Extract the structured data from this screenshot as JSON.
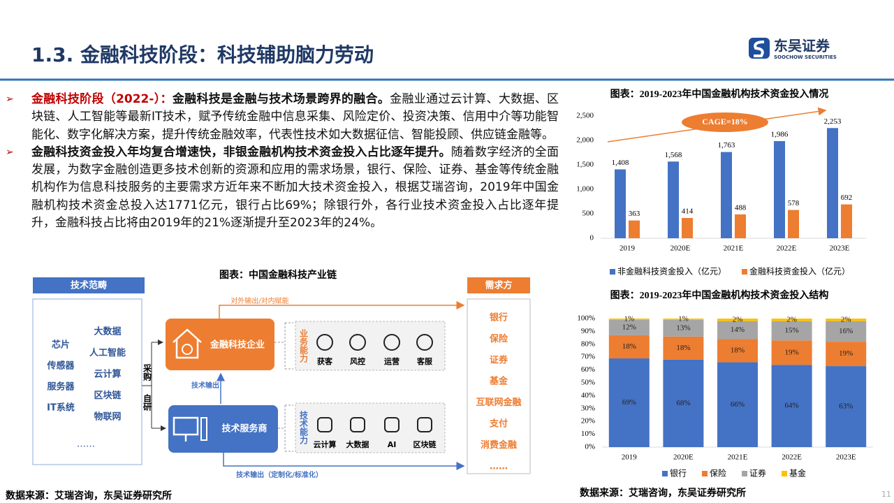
{
  "header": {
    "title": "1.3. 金融科技阶段：科技辅助脑力劳动"
  },
  "logo": {
    "name": "东吴证券",
    "sub": "SOOCHOW SECURITIES"
  },
  "bullets": [
    {
      "lead": "金融科技阶段（2022-）：",
      "key": "金融科技是金融与技术场景跨界的融合。",
      "text": "金融业通过云计算、大数据、区块链、人工智能等最新IT技术，赋予传统金融中信息采集、风险定价、投资决策、信用中介等功能智能化、数字化解决方案，提升传统金融效率，代表性技术如大数据征信、智能投顾、供应链金融等。"
    },
    {
      "key": "金融科技资金投入年均复合增速快，非银金融机构技术资金投入占比逐年提升。",
      "text": "随着数字经济的全面发展，为数字金融创造更多技术创新的资源和应用的需求场景，银行、保险、证券、基金等传统金融机构作为信息科技服务的主要需求方近年来不断加大技术资金投入，根据艾瑞咨询，2019年中国金融机构技术资金总投入达1771亿元，银行占比69%；除银行外，各行业技术资金投入占比逐年提升，金融科技占比将由2019年的21%逐渐提升至2023年的24%。"
    }
  ],
  "diagram": {
    "title": "图表：中国金融科技产业链",
    "scope_header": "技术范畴",
    "scope_col1": [
      "芯片",
      "传感器",
      "服务器",
      "IT系统"
    ],
    "scope_col2": [
      "大数据",
      "人工智能",
      "云计算",
      "区块链",
      "物联网"
    ],
    "scope_more": "……",
    "purchase": "采购",
    "selfdev": "自研",
    "fintech_node": "金融科技企业",
    "service_node": "技术服务商",
    "top_flow": "对外输出/对内赋能",
    "up_flow": "技术输出",
    "bottom_flow": "技术输出（定制化/标准化）",
    "business_label": "业务能力",
    "business_items": [
      "获客",
      "风控",
      "运营",
      "客服"
    ],
    "tech_label": "技术能力",
    "tech_items": [
      "云计算",
      "大数据",
      "AI",
      "区块链"
    ],
    "demand_header": "需求方",
    "demand_items": [
      "银行",
      "保险",
      "证券",
      "基金",
      "互联网金融",
      "支付",
      "消费金融",
      "……"
    ]
  },
  "chart_data": [
    {
      "type": "bar",
      "title": "图表：2019-2023年中国金融机构技术资金投入情况",
      "categories": [
        "2019",
        "2020E",
        "2021E",
        "2022E",
        "2023E"
      ],
      "series": [
        {
          "name": "非金融科技资金投入（亿元）",
          "color": "#4472c4",
          "values": [
            1408,
            1568,
            1763,
            1986,
            2253
          ],
          "value_labels": [
            "1,408",
            "1,568",
            "1,763",
            "1,986",
            "2,253"
          ]
        },
        {
          "name": "金融科技资金投入（亿元）",
          "color": "#ed7d31",
          "values": [
            363,
            414,
            488,
            578,
            692
          ]
        }
      ],
      "ylim": [
        0,
        2500
      ],
      "yticks": [
        0,
        500,
        {
          "value": 1000,
          "label": "1,000"
        },
        {
          "value": 1500,
          "label": "1,500"
        },
        {
          "value": 2000,
          "label": "2,000"
        },
        {
          "value": 2500,
          "label": "2,500"
        }
      ],
      "annotation": "CAGE=18%",
      "legend": "bottom"
    },
    {
      "type": "bar",
      "stacked": true,
      "title": "图表：2019-2023年中国金融机构技术资金投入结构",
      "categories": [
        "2019",
        "2020E",
        "2021E",
        "2022E",
        "2023E"
      ],
      "series": [
        {
          "name": "银行",
          "color": "#4472c4",
          "values": [
            69,
            68,
            66,
            64,
            63
          ],
          "value_labels": [
            "69%",
            "68%",
            "66%",
            "64%",
            "63%"
          ]
        },
        {
          "name": "保险",
          "color": "#ed7d31",
          "values": [
            18,
            18,
            18,
            19,
            19
          ],
          "value_labels": [
            "18%",
            "18%",
            "18%",
            "19%",
            "19%"
          ]
        },
        {
          "name": "证券",
          "color": "#a5a5a5",
          "values": [
            12,
            13,
            14,
            15,
            16
          ],
          "value_labels": [
            "12%",
            "13%",
            "14%",
            "15%",
            "16%"
          ]
        },
        {
          "name": "基金",
          "color": "#ffc000",
          "values": [
            1,
            1,
            2,
            2,
            2
          ],
          "value_labels": [
            "1%",
            "1%",
            "2%",
            "2%",
            "2%"
          ]
        }
      ],
      "ylim": [
        0,
        100
      ],
      "yticks": [
        {
          "value": 0,
          "label": "0%"
        },
        {
          "value": 10,
          "label": "10%"
        },
        {
          "value": 20,
          "label": "20%"
        },
        {
          "value": 30,
          "label": "30%"
        },
        {
          "value": 40,
          "label": "40%"
        },
        {
          "value": 50,
          "label": "50%"
        },
        {
          "value": 60,
          "label": "60%"
        },
        {
          "value": 70,
          "label": "70%"
        },
        {
          "value": 80,
          "label": "80%"
        },
        {
          "value": 90,
          "label": "90%"
        },
        {
          "value": 100,
          "label": "100%"
        }
      ],
      "legend": "bottom"
    }
  ],
  "footer": {
    "source_left": "数据来源：艾瑞咨询，东吴证券研究所",
    "source_right": "数据来源：艾瑞咨询，东吴证券研究所",
    "page": "11"
  }
}
